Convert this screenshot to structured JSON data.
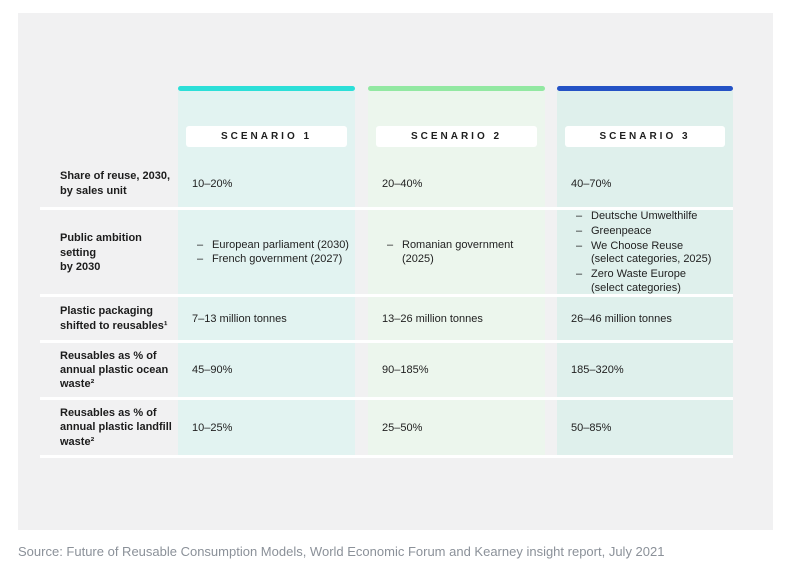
{
  "scenarios": [
    {
      "title": "SCENARIO 1",
      "bar_color": "#2cdfd8",
      "bg_color": "#e2f3f1"
    },
    {
      "title": "SCENARIO 2",
      "bar_color": "#92e8a2",
      "bg_color": "#ecf6ed"
    },
    {
      "title": "SCENARIO 3",
      "bar_color": "#2452c5",
      "bg_color": "#dff0ec"
    }
  ],
  "rows": [
    {
      "label": "Share of reuse, 2030,\nby sales unit",
      "values": [
        "10–20%",
        "20–40%",
        "40–70%"
      ]
    },
    {
      "label": "Public ambition setting\nby 2030",
      "lists": [
        [
          "European parliament (2030)",
          "French government (2027)"
        ],
        [
          "Romanian government (2025)"
        ],
        [
          "Deutsche Umwelthilfe",
          "Greenpeace",
          "We Choose Reuse\n(select categories, 2025)",
          "Zero Waste Europe\n(select categories)"
        ]
      ]
    },
    {
      "label": "Plastic packaging\nshifted to reusables¹",
      "values": [
        "7–13 million tonnes",
        "13–26 million tonnes",
        "26–46 million tonnes"
      ]
    },
    {
      "label": "Reusables as % of\nannual plastic ocean\nwaste²",
      "values": [
        "45–90%",
        "90–185%",
        "185–320%"
      ]
    },
    {
      "label": "Reusables as % of\nannual plastic landfill\nwaste²",
      "values": [
        "10–25%",
        "25–50%",
        "50–85%"
      ]
    }
  ],
  "source": "Source: Future of Reusable Consumption Models, World Economic Forum and Kearney insight report, July 2021"
}
